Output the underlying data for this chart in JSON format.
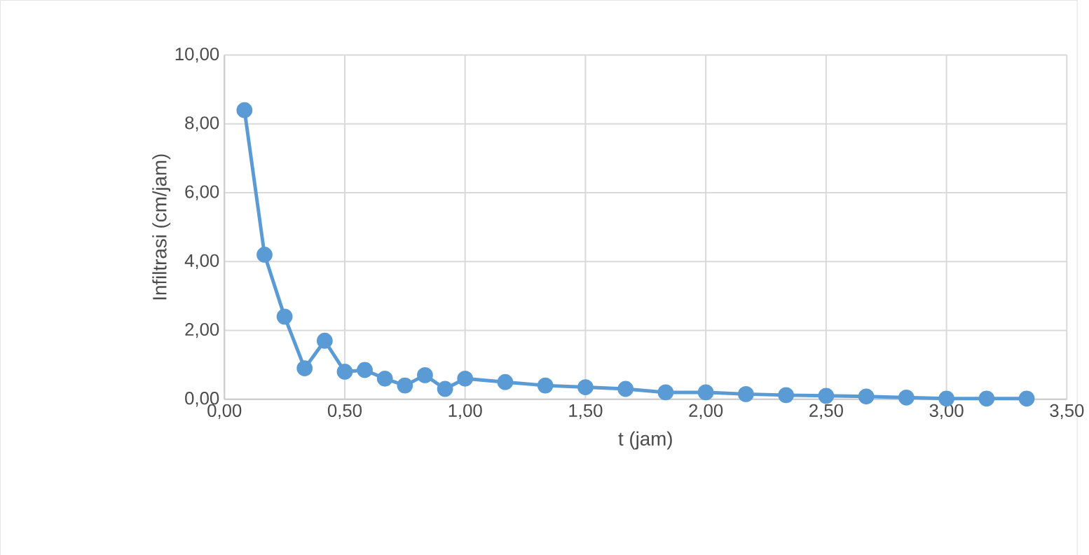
{
  "chart_data": {
    "type": "line",
    "xlabel": "t (jam)",
    "ylabel": "Infiltrasi (cm/jam)",
    "x": [
      0.0833,
      0.1667,
      0.25,
      0.3333,
      0.4167,
      0.5,
      0.5833,
      0.6667,
      0.75,
      0.8333,
      0.9167,
      1.0,
      1.1667,
      1.3333,
      1.5,
      1.6667,
      1.8333,
      2.0,
      2.1667,
      2.3333,
      2.5,
      2.6667,
      2.8333,
      3.0,
      3.1667,
      3.3333
    ],
    "series": [
      {
        "color": "#5b9bd5",
        "values": [
          8.4,
          4.2,
          2.4,
          0.9,
          1.7,
          0.8,
          0.85,
          0.6,
          0.4,
          0.7,
          0.3,
          0.6,
          0.5,
          0.4,
          0.35,
          0.3,
          0.2,
          0.2,
          0.15,
          0.12,
          0.1,
          0.08,
          0.05,
          0.02,
          0.02,
          0.02
        ]
      }
    ],
    "xlim": [
      0,
      3.5
    ],
    "ylim": [
      0,
      10
    ],
    "xticks": [
      {
        "value": 0,
        "label": "0,00"
      },
      {
        "value": 0.5,
        "label": "0,50"
      },
      {
        "value": 1,
        "label": "1,00"
      },
      {
        "value": 1.5,
        "label": "1,50"
      },
      {
        "value": 2,
        "label": "2,00"
      },
      {
        "value": 2.5,
        "label": "2,50"
      },
      {
        "value": 3,
        "label": "3,00"
      },
      {
        "value": 3.5,
        "label": "3,50"
      }
    ],
    "yticks": [
      {
        "value": 0,
        "label": "0,00"
      },
      {
        "value": 2,
        "label": "2,00"
      },
      {
        "value": 4,
        "label": "4,00"
      },
      {
        "value": 6,
        "label": "6,00"
      },
      {
        "value": 8,
        "label": "8,00"
      },
      {
        "value": 10,
        "label": "10,00"
      }
    ],
    "grid": true,
    "marker": "circle",
    "line_style": "solid"
  }
}
